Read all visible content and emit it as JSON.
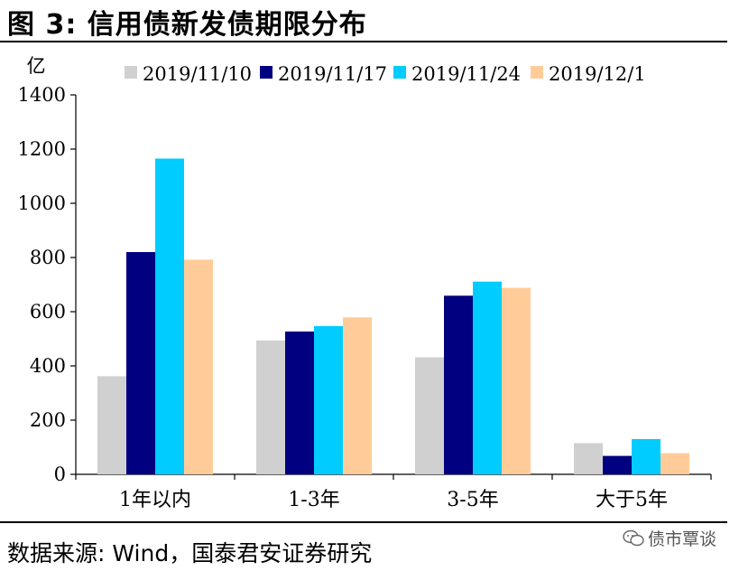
{
  "header": {
    "title": "图 3:  信用债新发债期限分布"
  },
  "footer": {
    "source": "数据来源:  Wind，国泰君安证券研究",
    "watermark": "债市覃谈",
    "watermark_icon": "wechat-icon"
  },
  "chart_data": {
    "type": "bar",
    "title": "",
    "xlabel": "",
    "ylabel": "亿",
    "ylim": [
      0,
      1400
    ],
    "yticks": [
      0,
      200,
      400,
      600,
      800,
      1000,
      1200,
      1400
    ],
    "grid": false,
    "legend_position": "top",
    "categories": [
      "1年以内",
      "1-3年",
      "3-5年",
      "大于5年"
    ],
    "series": [
      {
        "name": "2019/11/10",
        "color": "#d0d0d0",
        "values": [
          362,
          494,
          432,
          115
        ]
      },
      {
        "name": "2019/11/17",
        "color": "#000080",
        "values": [
          820,
          527,
          659,
          68
        ]
      },
      {
        "name": "2019/11/24",
        "color": "#00ccff",
        "values": [
          1165,
          547,
          711,
          130
        ]
      },
      {
        "name": "2019/12/1",
        "color": "#ffcc99",
        "values": [
          792,
          579,
          688,
          78
        ]
      }
    ]
  }
}
